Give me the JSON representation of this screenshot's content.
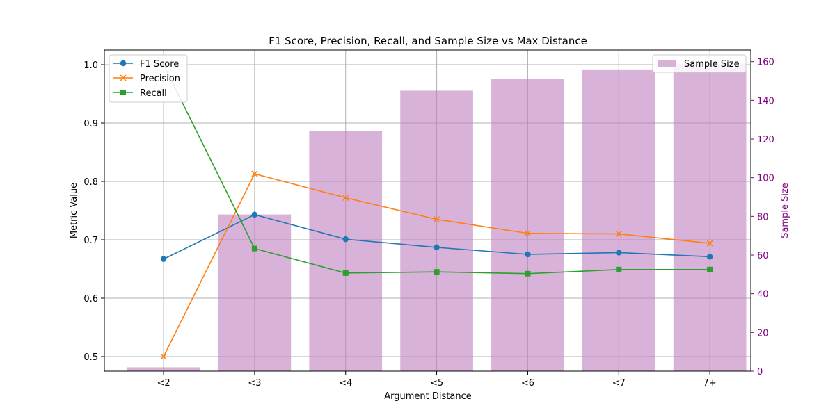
{
  "chart_data": {
    "type": "bar+line",
    "title": "F1 Score, Precision, Recall, and Sample Size vs Max Distance",
    "xlabel": "Argument Distance",
    "ylabel": "Metric Value",
    "ylabel_right": "Sample Size",
    "categories": [
      "<2",
      "<3",
      "<4",
      "<5",
      "<6",
      "<7",
      "7+"
    ],
    "ylim": [
      0.475,
      1.025
    ],
    "ylim_right": [
      0,
      166
    ],
    "yticks": [
      "0.5",
      "0.6",
      "0.7",
      "0.8",
      "0.9",
      "1.0"
    ],
    "yticks_right": [
      "0",
      "20",
      "40",
      "60",
      "80",
      "100",
      "120",
      "140",
      "160"
    ],
    "grid": true,
    "bars": {
      "name": "Sample Size",
      "color": "#bf7fbf",
      "values": [
        2,
        81,
        124,
        145,
        151,
        156,
        159
      ]
    },
    "series": [
      {
        "name": "F1 Score",
        "color": "#1f77b4",
        "marker": "circle",
        "values": [
          0.667,
          0.743,
          0.701,
          0.687,
          0.675,
          0.678,
          0.671
        ]
      },
      {
        "name": "Precision",
        "color": "#ff7f0e",
        "marker": "x",
        "values": [
          0.5,
          0.813,
          0.772,
          0.735,
          0.711,
          0.71,
          0.694
        ]
      },
      {
        "name": "Recall",
        "color": "#2ca02c",
        "marker": "square",
        "values": [
          1.0,
          0.685,
          0.643,
          0.645,
          0.642,
          0.649,
          0.649
        ]
      }
    ],
    "legend_left_position": "top-left",
    "legend_right_position": "top-right"
  }
}
